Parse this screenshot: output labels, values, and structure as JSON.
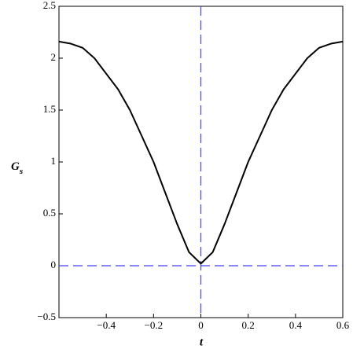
{
  "chart_data": {
    "type": "line",
    "xlabel": "t",
    "ylabel": "G",
    "ylabel_subscript": "s",
    "x": [
      -0.6,
      -0.55,
      -0.5,
      -0.45,
      -0.4,
      -0.35,
      -0.3,
      -0.25,
      -0.2,
      -0.15,
      -0.1,
      -0.05,
      0,
      0.05,
      0.1,
      0.15,
      0.2,
      0.25,
      0.3,
      0.35,
      0.4,
      0.45,
      0.5,
      0.55,
      0.6
    ],
    "series": [
      {
        "color": "#000000",
        "values": [
          2.16,
          2.14,
          2.1,
          2.0,
          1.85,
          1.7,
          1.5,
          1.25,
          1.0,
          0.7,
          0.4,
          0.13,
          0.02,
          0.13,
          0.4,
          0.7,
          1.0,
          1.25,
          1.5,
          1.7,
          1.85,
          2.0,
          2.1,
          2.14,
          2.16
        ]
      }
    ],
    "xlim": [
      -0.6,
      0.6
    ],
    "xticks": [
      {
        "value": -0.4,
        "label": "−0.4"
      },
      {
        "value": -0.2,
        "label": "−0.2"
      },
      0,
      0.2,
      0.4,
      0.6
    ],
    "ylim": [
      -0.5,
      2.5
    ],
    "yticks": [
      {
        "value": -0.5,
        "label": "−0.5"
      },
      0,
      0.5,
      1,
      1.5,
      2,
      2.5
    ],
    "zero_axes_color": "#4040ff"
  }
}
